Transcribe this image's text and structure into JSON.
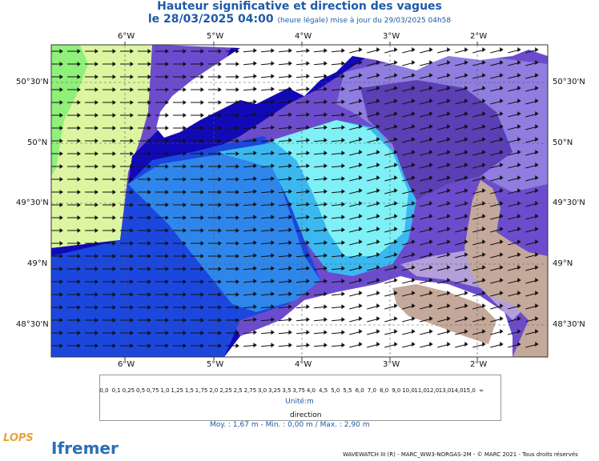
{
  "header": {
    "title": "Hauteur significative et direction des vagues",
    "date": "le 28/03/2025 04:00",
    "update": "(heure légale) mise à jour du 29/03/2025 04h58"
  },
  "axes": {
    "lon_labels": [
      "6°W",
      "5°W",
      "4°W",
      "3°W",
      "2°W"
    ],
    "lat_labels": [
      "50°30'N",
      "50°N",
      "49°30'N",
      "49°N",
      "48°30'N"
    ]
  },
  "legend": {
    "values": [
      "0,0",
      "0,1",
      "0,25",
      "0,5",
      "0,75",
      "1,0",
      "1,25",
      "1,5",
      "1,75",
      "2,0",
      "2,25",
      "2,5",
      "2,75",
      "3,0",
      "3,25",
      "3,5",
      "3,75",
      "4,0",
      "4,5",
      "5,0",
      "5,5",
      "6,0",
      "7,0",
      "8,0",
      "9,0",
      "10,0",
      "11,0",
      "12,0",
      "13,0",
      "14,0",
      "15,0",
      "∞"
    ],
    "colors": [
      "#e6d2c3",
      "#d6bfae",
      "#c4a99a",
      "#b49fd9",
      "#8f7de0",
      "#6c4ccc",
      "#5a3fb5",
      "#7ff0f5",
      "#55ddf0",
      "#3bb8f0",
      "#2f86ea",
      "#1b47dd",
      "#1209b6",
      "#dcf5a0",
      "#b3f78f",
      "#8ff07a",
      "#6ae864",
      "#45e04a",
      "#1cb83a",
      "#ffff3c",
      "#ffd400",
      "#ffa600",
      "#ff8c1a",
      "#ff6e6e",
      "#f04a4a",
      "#c86a3a",
      "#a04a1e",
      "#a8150e",
      "#c10000",
      "#d0106a",
      "#a7007a",
      "#8a008a"
    ],
    "unit_label": "Unité:m",
    "direction_label": "direction",
    "stats": "Moy. : 1,67 m   -   Min. : 0,00 m / Max. : 2,90 m"
  },
  "footer": {
    "credit": "WAVEWATCH III (R) - MARC_WW3-NORGAS-2M - © MARC 2021 - Tous droits réservés",
    "logo_lops": "LOPS",
    "logo_ifremer": "Ifremer"
  }
}
